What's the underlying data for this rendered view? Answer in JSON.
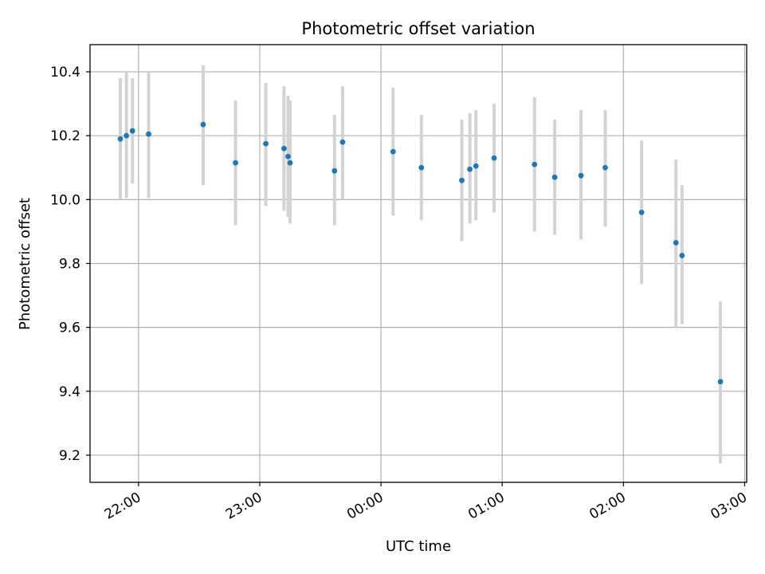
{
  "chart_data": {
    "type": "scatter",
    "title": "Photometric offset variation",
    "xlabel": "UTC time",
    "ylabel": "Photometric offset",
    "x_unit": "hours",
    "x_ticks": [
      {
        "t": "22:00",
        "label": "22:00"
      },
      {
        "t": "23:00",
        "label": "23:00"
      },
      {
        "t": "00:00",
        "label": "00:00"
      },
      {
        "t": "01:00",
        "label": "01:00"
      },
      {
        "t": "02:00",
        "label": "02:00"
      },
      {
        "t": "03:00",
        "label": "03:00"
      }
    ],
    "y_ticks": [
      9.2,
      9.4,
      9.6,
      9.8,
      10.0,
      10.2,
      10.4
    ],
    "ylim": [
      9.115,
      10.485
    ],
    "xlim": [
      "21:36",
      "03:01"
    ],
    "grid": true,
    "colors": {
      "point": "#1f77b4",
      "errorbar": "#d3d3d3",
      "grid": "#b0b0b0"
    },
    "points": [
      {
        "t": "21:51",
        "y": 10.19,
        "lo": 10.0,
        "hi": 10.38
      },
      {
        "t": "21:54",
        "y": 10.2,
        "lo": 10.005,
        "hi": 10.4
      },
      {
        "t": "21:57",
        "y": 10.215,
        "lo": 10.05,
        "hi": 10.38
      },
      {
        "t": "22:05",
        "y": 10.205,
        "lo": 10.005,
        "hi": 10.4
      },
      {
        "t": "22:32",
        "y": 10.235,
        "lo": 10.045,
        "hi": 10.42
      },
      {
        "t": "22:48",
        "y": 10.115,
        "lo": 9.92,
        "hi": 10.31
      },
      {
        "t": "23:03",
        "y": 10.175,
        "lo": 9.98,
        "hi": 10.365
      },
      {
        "t": "23:12",
        "y": 10.16,
        "lo": 9.965,
        "hi": 10.355
      },
      {
        "t": "23:14",
        "y": 10.135,
        "lo": 9.945,
        "hi": 10.325
      },
      {
        "t": "23:15",
        "y": 10.115,
        "lo": 9.925,
        "hi": 10.31
      },
      {
        "t": "23:37",
        "y": 10.09,
        "lo": 9.92,
        "hi": 10.265
      },
      {
        "t": "23:41",
        "y": 10.18,
        "lo": 10.0,
        "hi": 10.355
      },
      {
        "t": "00:06",
        "y": 10.15,
        "lo": 9.95,
        "hi": 10.35
      },
      {
        "t": "00:20",
        "y": 10.1,
        "lo": 9.935,
        "hi": 10.265
      },
      {
        "t": "00:40",
        "y": 10.06,
        "lo": 9.87,
        "hi": 10.25
      },
      {
        "t": "00:44",
        "y": 10.095,
        "lo": 9.925,
        "hi": 10.27
      },
      {
        "t": "00:47",
        "y": 10.105,
        "lo": 9.935,
        "hi": 10.28
      },
      {
        "t": "00:56",
        "y": 10.13,
        "lo": 9.96,
        "hi": 10.3
      },
      {
        "t": "01:16",
        "y": 10.11,
        "lo": 9.9,
        "hi": 10.32
      },
      {
        "t": "01:26",
        "y": 10.07,
        "lo": 9.89,
        "hi": 10.25
      },
      {
        "t": "01:39",
        "y": 10.075,
        "lo": 9.875,
        "hi": 10.28
      },
      {
        "t": "01:51",
        "y": 10.1,
        "lo": 9.915,
        "hi": 10.28
      },
      {
        "t": "02:09",
        "y": 9.96,
        "lo": 9.735,
        "hi": 10.185
      },
      {
        "t": "02:26",
        "y": 9.865,
        "lo": 9.6,
        "hi": 10.125
      },
      {
        "t": "02:29",
        "y": 9.825,
        "lo": 9.61,
        "hi": 10.045
      },
      {
        "t": "02:48",
        "y": 9.43,
        "lo": 9.175,
        "hi": 9.68
      }
    ]
  }
}
